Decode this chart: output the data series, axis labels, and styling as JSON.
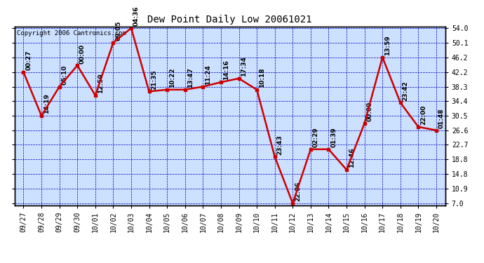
{
  "title": "Dew Point Daily Low 20061021",
  "copyright": "Copyright 2006 Cantronics.com",
  "x_labels": [
    "09/27",
    "09/28",
    "09/29",
    "09/30",
    "10/01",
    "10/02",
    "10/03",
    "10/04",
    "10/05",
    "10/06",
    "10/07",
    "10/08",
    "10/09",
    "10/10",
    "10/11",
    "10/12",
    "10/13",
    "10/14",
    "10/15",
    "10/16",
    "10/17",
    "10/18",
    "10/19",
    "10/20"
  ],
  "y_values": [
    42.2,
    30.5,
    38.3,
    44.0,
    36.0,
    50.1,
    54.0,
    37.0,
    37.5,
    37.5,
    38.3,
    39.5,
    40.5,
    37.5,
    19.5,
    7.0,
    21.5,
    21.5,
    16.0,
    28.5,
    46.2,
    34.0,
    27.5,
    26.6
  ],
  "time_labels": [
    "00:27",
    "14:19",
    "05:10",
    "00:00",
    "12:59",
    "09:05",
    "04:36",
    "21:35",
    "10:22",
    "13:47",
    "11:24",
    "14:16",
    "17:34",
    "10:18",
    "23:43",
    "22:06",
    "02:29",
    "01:39",
    "12:46",
    "00:00",
    "13:59",
    "23:42",
    "22:00",
    "01:48"
  ],
  "y_min": 7.0,
  "y_max": 54.0,
  "y_ticks": [
    7.0,
    10.9,
    14.8,
    18.8,
    22.7,
    26.6,
    30.5,
    34.4,
    38.3,
    42.2,
    46.2,
    50.1,
    54.0
  ],
  "line_color": "#cc0000",
  "marker_color": "#cc0000",
  "bg_color": "#ffffff",
  "plot_bg_color": "#cce0ff",
  "grid_color": "#0000bb",
  "border_color": "#000000",
  "text_color": "#000000",
  "label_fontsize": 6.5,
  "title_fontsize": 10,
  "tick_fontsize": 7.0,
  "copyright_fontsize": 6.5
}
